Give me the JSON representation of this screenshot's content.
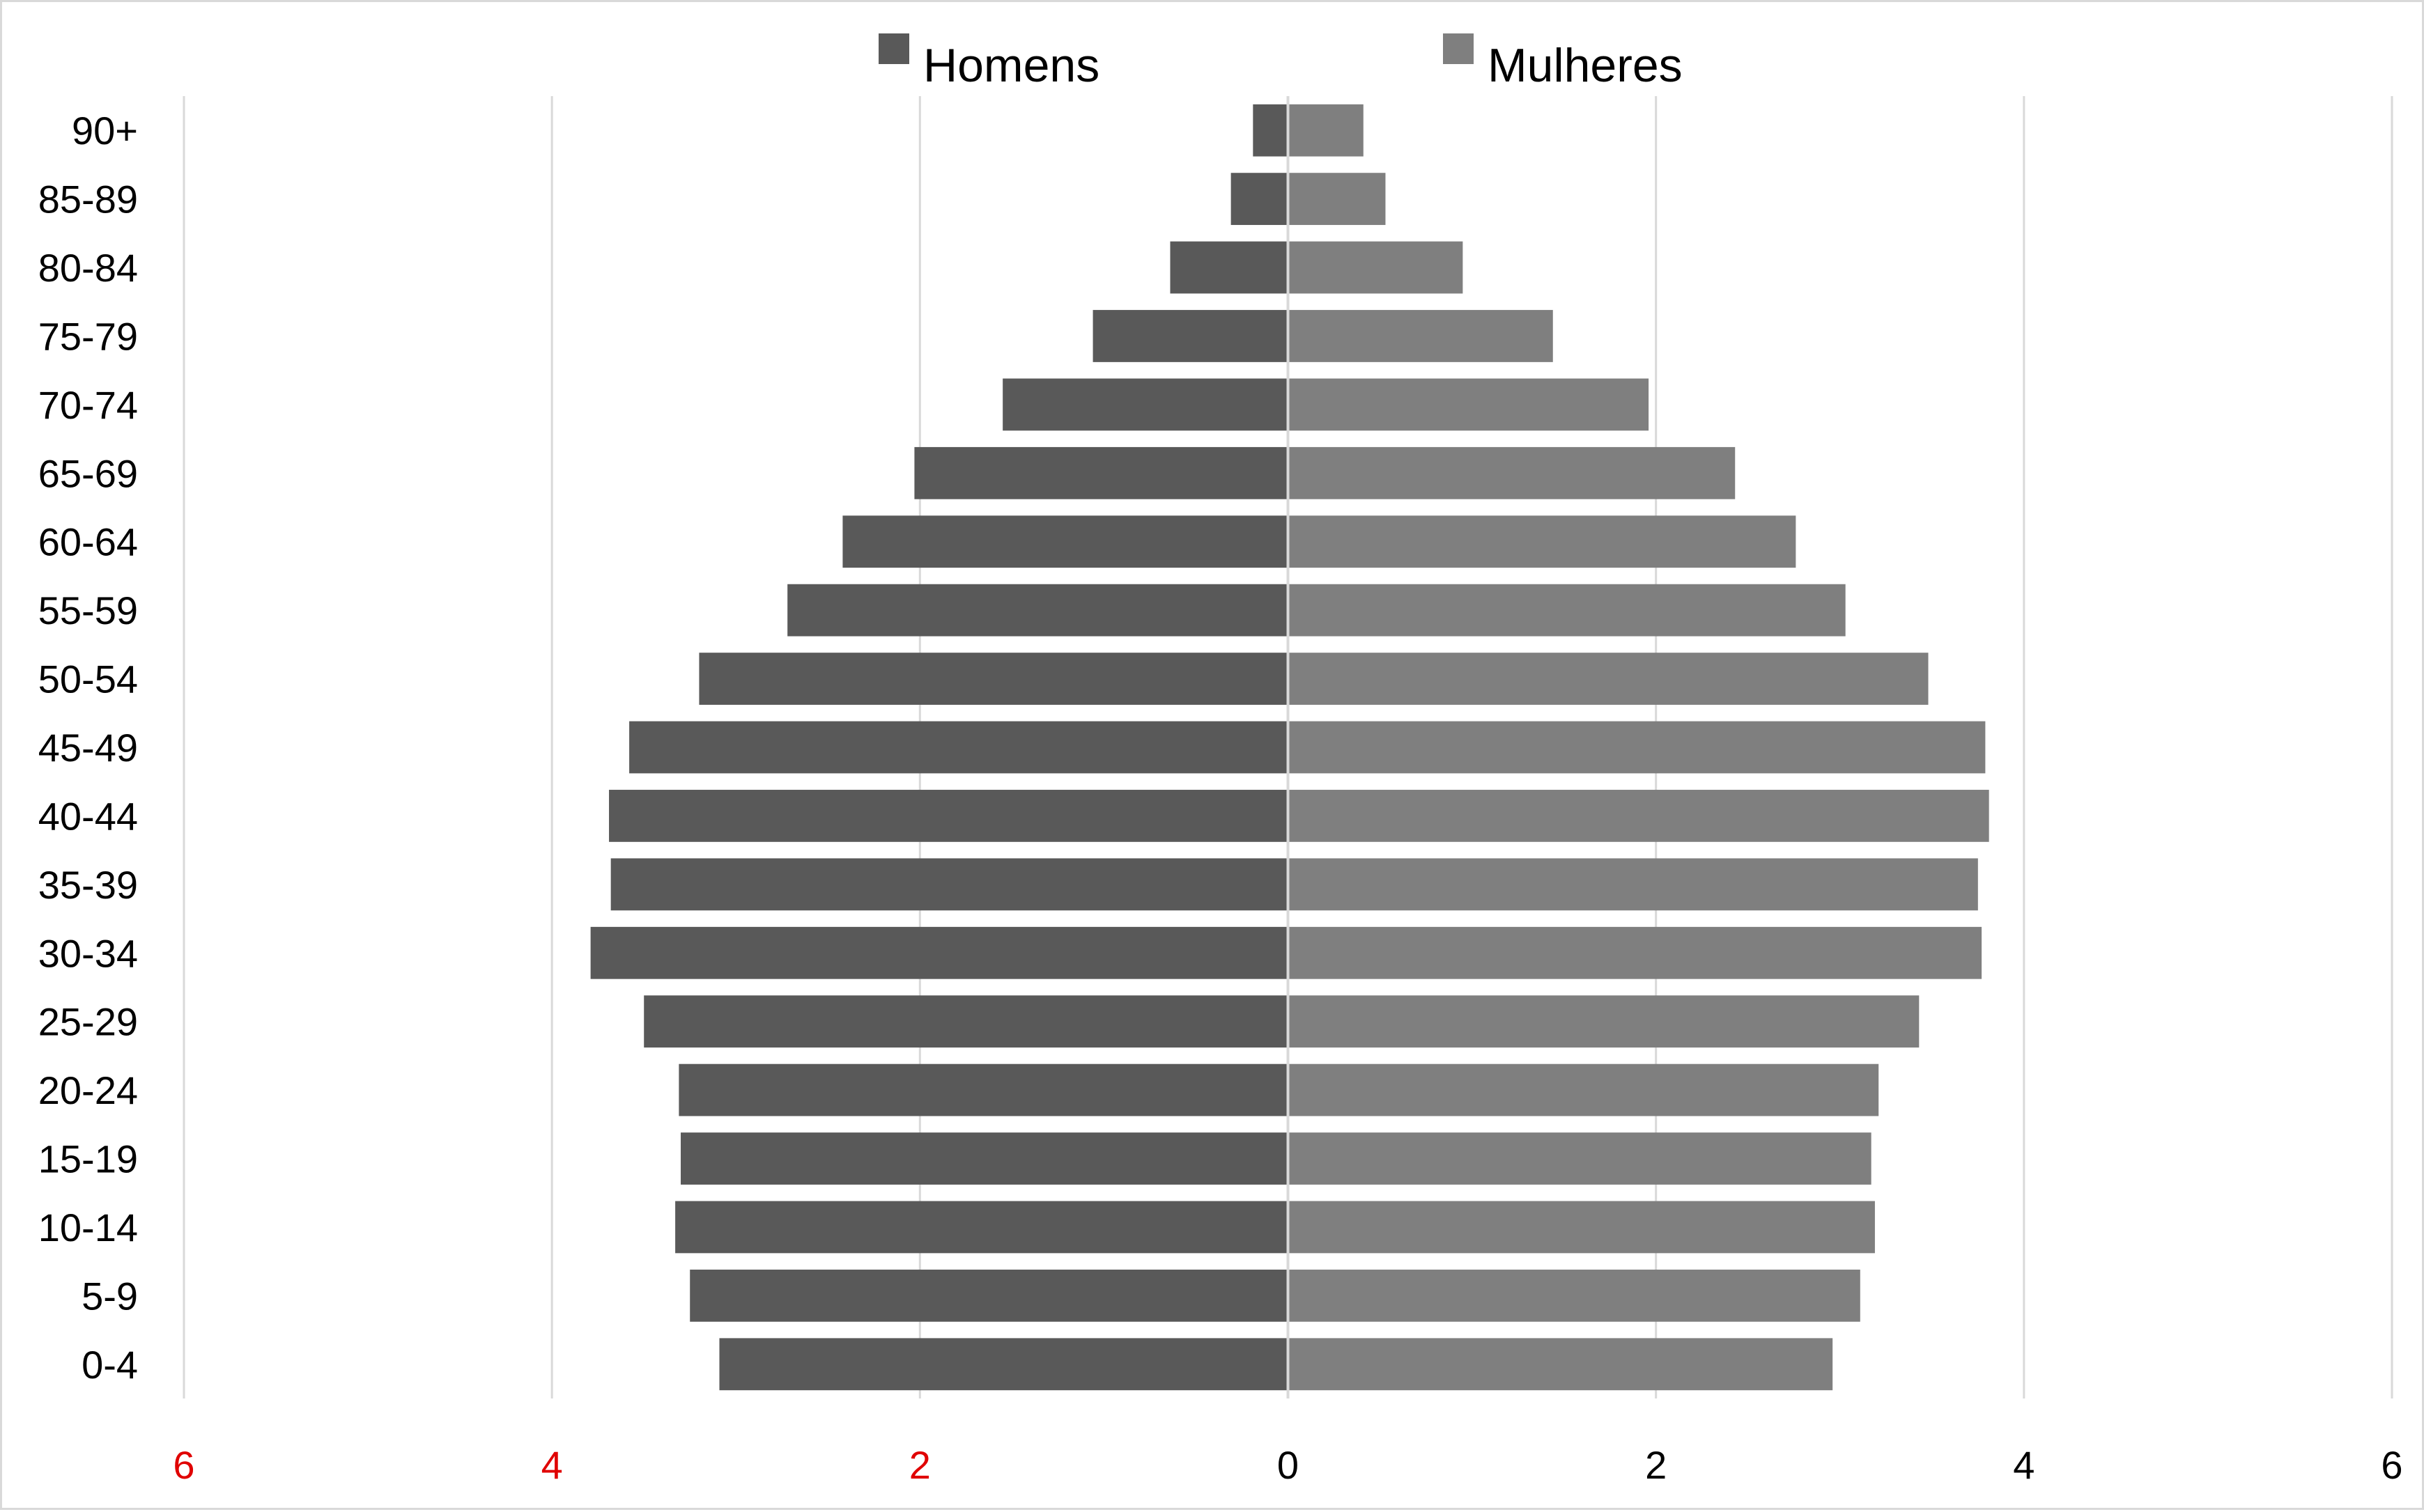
{
  "chart_data": {
    "type": "bar",
    "orientation": "horizontal",
    "layout": "population-pyramid",
    "title": "",
    "xlabel": "",
    "ylabel": "",
    "categories": [
      "90+",
      "85-89",
      "80-84",
      "75-79",
      "70-74",
      "65-69",
      "60-64",
      "55-59",
      "50-54",
      "45-49",
      "40-44",
      "35-39",
      "30-34",
      "25-29",
      "20-24",
      "15-19",
      "10-14",
      "5-9",
      "0-4"
    ],
    "series": [
      {
        "name": "Homens",
        "color": "#595959",
        "side": "left",
        "values": [
          0.19,
          0.31,
          0.64,
          1.06,
          1.55,
          2.03,
          2.42,
          2.72,
          3.2,
          3.58,
          3.69,
          3.68,
          3.79,
          3.5,
          3.31,
          3.3,
          3.33,
          3.25,
          3.09
        ]
      },
      {
        "name": "Mulheres",
        "color": "#7f7f7f",
        "side": "right",
        "values": [
          0.41,
          0.53,
          0.95,
          1.44,
          1.96,
          2.43,
          2.76,
          3.03,
          3.48,
          3.79,
          3.81,
          3.75,
          3.77,
          3.43,
          3.21,
          3.17,
          3.19,
          3.11,
          2.96
        ]
      }
    ],
    "xlim": [
      -6,
      6
    ],
    "x_ticks": [
      -6,
      -4,
      -2,
      0,
      2,
      4,
      6
    ],
    "x_tick_labels": [
      "6",
      "4",
      "2",
      "0",
      "2",
      "4",
      "6"
    ],
    "x_tick_colors": [
      "#e00000",
      "#e00000",
      "#e00000",
      "#000000",
      "#000000",
      "#000000",
      "#000000"
    ],
    "grid": "vertical",
    "legend": "top-center"
  }
}
